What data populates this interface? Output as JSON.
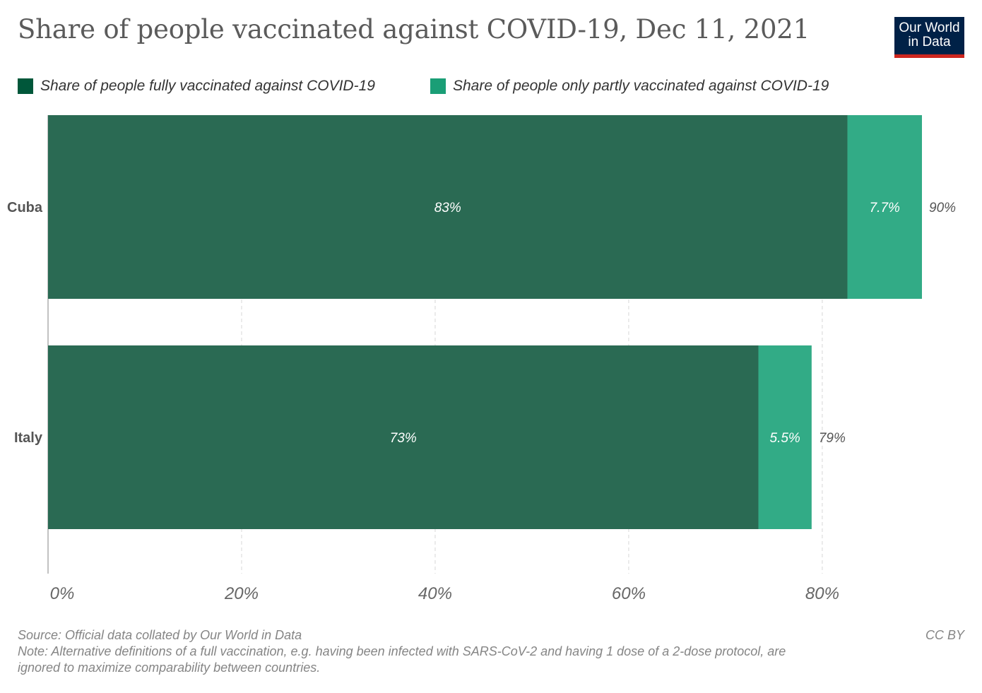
{
  "title": "Share of people vaccinated against COVID-19, Dec 11, 2021",
  "logo": {
    "line1": "Our World",
    "line2": "in Data"
  },
  "legend": [
    {
      "label": "Share of people fully vaccinated against COVID-19",
      "color": "#00573a"
    },
    {
      "label": "Share of people only partly vaccinated against COVID-19",
      "color": "#1a9e76"
    }
  ],
  "footer": {
    "source": "Source: Official data collated by Our World in Data",
    "note_line1": "Note: Alternative definitions of a full vaccination, e.g. having been infected with SARS-CoV-2 and having 1 dose of a 2-dose protocol, are",
    "note_line2": "ignored to maximize comparability between countries.",
    "license": "CC BY"
  },
  "chart_data": {
    "type": "bar",
    "orientation": "horizontal",
    "stacked": true,
    "categories": [
      "Cuba",
      "Italy"
    ],
    "series": [
      {
        "name": "Share of people fully vaccinated against COVID-19",
        "values": [
          82.6,
          73.4
        ],
        "labels": [
          "83%",
          "73%"
        ],
        "color": "#2a6a53"
      },
      {
        "name": "Share of people only partly vaccinated against COVID-19",
        "values": [
          7.7,
          5.5
        ],
        "labels": [
          "7.7%",
          "5.5%"
        ],
        "color": "#32ab86"
      }
    ],
    "totals": [
      "90%",
      "79%"
    ],
    "x_ticks": [
      0,
      20,
      40,
      60,
      80
    ],
    "x_tick_labels": [
      "0%",
      "20%",
      "40%",
      "60%",
      "80%"
    ],
    "xlim": [
      0,
      90.3
    ],
    "grid": "vertical dashed"
  }
}
